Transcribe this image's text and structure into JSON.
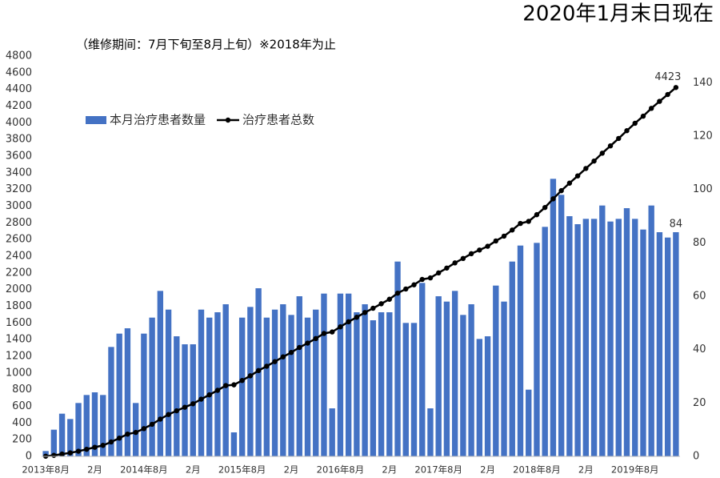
{
  "chart_data": {
    "type": "combo",
    "title": "2020年1月末日现在",
    "subtitle": "（维修期间：7月下旬至8月上旬）※2018年为止",
    "categories": [
      "2013年8月",
      null,
      null,
      null,
      null,
      null,
      "2月",
      null,
      null,
      null,
      null,
      null,
      "2014年8月",
      null,
      null,
      null,
      null,
      null,
      "2月",
      null,
      null,
      null,
      null,
      null,
      "2015年8月",
      null,
      null,
      null,
      null,
      null,
      "2月",
      null,
      null,
      null,
      null,
      null,
      "2016年8月",
      null,
      null,
      null,
      null,
      null,
      "2月",
      null,
      null,
      null,
      null,
      null,
      "2017年8月",
      null,
      null,
      null,
      null,
      null,
      "2月",
      null,
      null,
      null,
      null,
      null,
      "2018年8月",
      null,
      null,
      null,
      null,
      null,
      "2月",
      null,
      null,
      null,
      null,
      null,
      "2019年8月",
      null,
      null,
      null,
      null,
      null
    ],
    "series": [
      {
        "name": "本月治疗患者数量",
        "type": "bar",
        "axis": "y2",
        "color": "#4472c4",
        "values": [
          2,
          10,
          16,
          14,
          20,
          23,
          24,
          23,
          41,
          46,
          48,
          20,
          46,
          52,
          62,
          55,
          45,
          42,
          42,
          55,
          52,
          54,
          57,
          9,
          52,
          56,
          63,
          52,
          55,
          57,
          53,
          60,
          52,
          55,
          61,
          18,
          61,
          61,
          54,
          57,
          51,
          54,
          54,
          73,
          50,
          50,
          65,
          18,
          60,
          58,
          62,
          53,
          57,
          44,
          45,
          64,
          58,
          73,
          79,
          25,
          80,
          86,
          104,
          98,
          90,
          87,
          89,
          89,
          94,
          88,
          89,
          93,
          89,
          85,
          94,
          84,
          82,
          84
        ]
      },
      {
        "name": "治疗患者总数",
        "type": "line",
        "color": "#000000",
        "values": [
          2,
          12,
          28,
          42,
          62,
          85,
          109,
          132,
          173,
          219,
          267,
          287,
          333,
          385,
          447,
          502,
          547,
          589,
          631,
          686,
          738,
          792,
          849,
          858,
          910,
          966,
          1029,
          1081,
          1136,
          1193,
          1246,
          1306,
          1358,
          1413,
          1474,
          1492,
          1553,
          1614,
          1668,
          1725,
          1776,
          1830,
          1884,
          1957,
          2007,
          2057,
          2122,
          2140,
          2200,
          2258,
          2320,
          2373,
          2430,
          2474,
          2519,
          2583,
          2641,
          2714,
          2793,
          2818,
          2898,
          2984,
          3088,
          3186,
          3276,
          3363,
          3452,
          3541,
          3635,
          3723,
          3812,
          3905,
          3994,
          4079,
          4173,
          4257,
          4339,
          4423
        ]
      }
    ],
    "ylim": [
      0,
      4800
    ],
    "yticks": [
      0,
      200,
      400,
      600,
      800,
      1000,
      1200,
      1400,
      1600,
      1800,
      2000,
      2200,
      2400,
      2600,
      2800,
      3000,
      3200,
      3400,
      3600,
      3800,
      4000,
      4200,
      4400,
      4600,
      4800
    ],
    "y2lim": [
      0,
      150
    ],
    "y2ticks": [
      0,
      20,
      40,
      60,
      80,
      100,
      120,
      140
    ],
    "data_labels": "last",
    "grid": false,
    "legend": "top-left"
  }
}
